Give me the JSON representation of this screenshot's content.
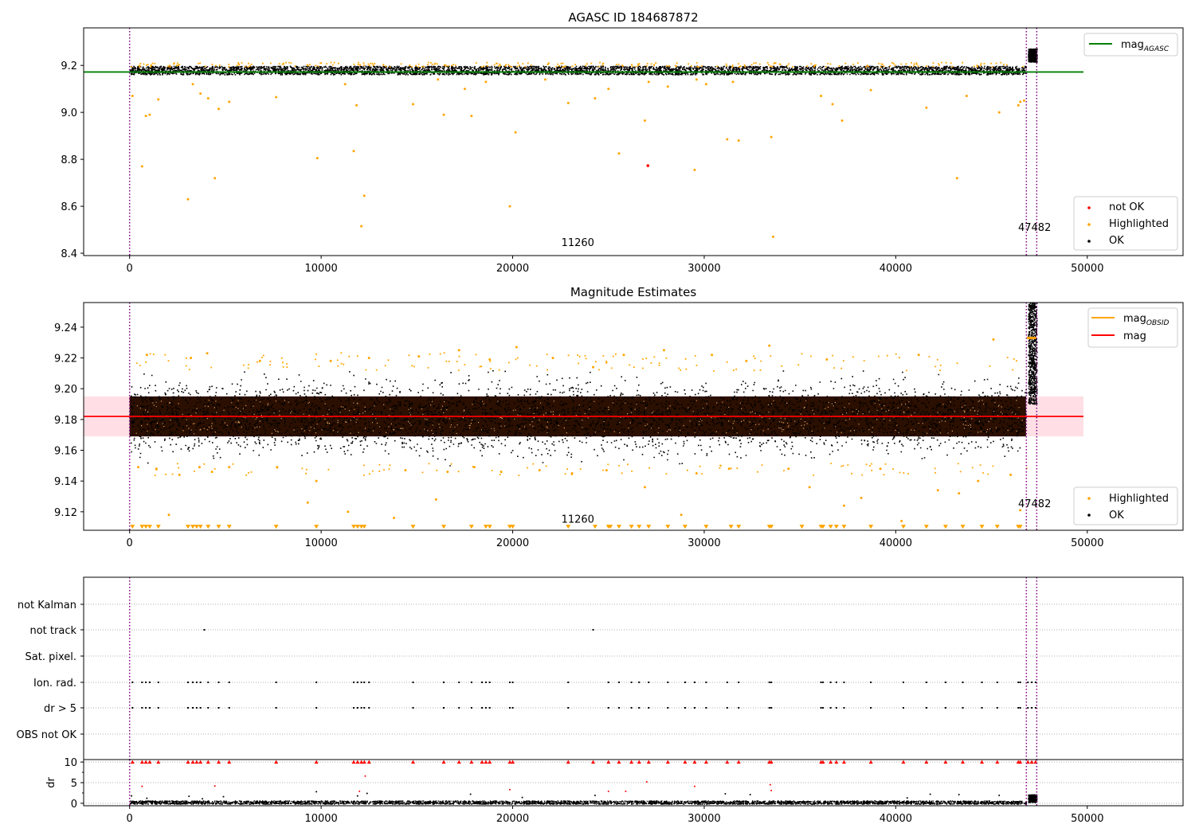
{
  "figure": {
    "title": "AGASC ID 184687872"
  },
  "chart_data": [
    {
      "type": "scatter",
      "title": "AGASC ID 184687872",
      "xlabel": "",
      "ylabel": "",
      "xlim": [
        -2400,
        55000
      ],
      "ylim": [
        8.39,
        9.36
      ],
      "xticks": [
        0,
        10000,
        20000,
        30000,
        40000,
        50000
      ],
      "xtick_labels": [
        "0",
        "10000",
        "20000",
        "30000",
        "40000",
        "50000"
      ],
      "yticks": [
        8.4,
        8.6,
        8.8,
        9.0,
        9.2
      ],
      "ytick_labels": [
        "8.4",
        "8.6",
        "8.8",
        "9.0",
        "9.2"
      ],
      "grid": false,
      "vlines": [
        0,
        46820,
        47360
      ],
      "vline_color": "#800080",
      "annotations": [
        {
          "text": "11260",
          "x": 23400,
          "y": 8.43
        },
        {
          "text": "47482",
          "x": 47250,
          "y": 8.495
        }
      ],
      "line": {
        "name": "mag_AGASC",
        "x": [
          -2400,
          49800
        ],
        "y": [
          9.172,
          9.172
        ],
        "color": "#008000"
      },
      "ok_band": {
        "x": [
          0,
          46800
        ],
        "center": 9.181,
        "spread": 0.018,
        "color": "#000000"
      },
      "ok_late": {
        "x": [
          46900,
          47350
        ],
        "center": 9.245,
        "spread": 0.028,
        "color": "#000000"
      },
      "highlighted": {
        "color": "#FFA500",
        "x": [
          150,
          650,
          850,
          1050,
          1500,
          3050,
          3300,
          3700,
          4100,
          4450,
          4650,
          5200,
          7650,
          9800,
          11250,
          11700,
          11850,
          12100,
          12250,
          14800,
          16100,
          16400,
          17500,
          17850,
          18600,
          19850,
          20150,
          21700,
          22900,
          24300,
          25000,
          25550,
          26900,
          27100,
          28100,
          29500,
          29600,
          30100,
          31200,
          31500,
          31800,
          33500,
          33600,
          36100,
          36700,
          37200,
          38700,
          41600,
          43200,
          43700,
          45400,
          46400,
          46500,
          46700
        ],
        "y": [
          9.07,
          8.77,
          8.985,
          8.99,
          9.055,
          8.63,
          9.12,
          9.08,
          9.06,
          8.72,
          9.015,
          9.045,
          9.065,
          8.805,
          9.12,
          8.835,
          9.03,
          8.515,
          8.645,
          9.035,
          9.14,
          8.99,
          9.1,
          8.985,
          9.13,
          8.6,
          8.915,
          9.14,
          9.04,
          9.06,
          9.1,
          8.825,
          8.965,
          9.13,
          9.11,
          8.755,
          9.14,
          9.12,
          8.885,
          9.13,
          8.88,
          8.895,
          8.47,
          9.07,
          9.035,
          8.965,
          9.095,
          9.02,
          8.72,
          9.07,
          9.0,
          9.03,
          9.045,
          9.05
        ]
      },
      "not_ok": {
        "color": "#FF0000",
        "x": [
          27060
        ],
        "y": [
          8.773
        ]
      },
      "legends": [
        {
          "placement": "upper right",
          "entries": [
            {
              "label": "mag",
              "sub": "AGASC",
              "color": "#008000",
              "kind": "line"
            }
          ]
        },
        {
          "placement": "lower right",
          "entries": [
            {
              "label": "not OK",
              "color": "#FF0000",
              "kind": "dot"
            },
            {
              "label": "Highlighted",
              "color": "#FFA500",
              "kind": "dot"
            },
            {
              "label": "OK",
              "color": "#000000",
              "kind": "dot"
            }
          ]
        }
      ]
    },
    {
      "type": "scatter",
      "title": "Magnitude Estimates",
      "xlabel": "",
      "ylabel": "",
      "xlim": [
        -2400,
        55000
      ],
      "ylim": [
        9.108,
        9.256
      ],
      "xticks": [
        0,
        10000,
        20000,
        30000,
        40000,
        50000
      ],
      "xtick_labels": [
        "0",
        "10000",
        "20000",
        "30000",
        "40000",
        "50000"
      ],
      "yticks": [
        9.12,
        9.14,
        9.16,
        9.18,
        9.2,
        9.22,
        9.24
      ],
      "ytick_labels": [
        "9.12",
        "9.14",
        "9.16",
        "9.18",
        "9.20",
        "9.22",
        "9.24"
      ],
      "grid": false,
      "vlines": [
        0,
        46820,
        47360
      ],
      "vline_color": "#800080",
      "annotations": [
        {
          "text": "11260",
          "x": 23400,
          "y": 9.113
        },
        {
          "text": "47482",
          "x": 47250,
          "y": 9.123
        }
      ],
      "band": {
        "x": [
          -2400,
          49800
        ],
        "y": [
          9.169,
          9.195
        ],
        "color": "#FFC0CB"
      },
      "mag_line": {
        "name": "mag",
        "x": [
          -2400,
          49800
        ],
        "y": [
          9.182,
          9.182
        ],
        "color": "#FF0000"
      },
      "mag_obsid": {
        "name": "mag_OBSID",
        "x": [
          46850,
          47330
        ],
        "y": [
          9.233,
          9.233
        ],
        "color": "#FFA500"
      },
      "dense_band": {
        "x": [
          0,
          46800
        ],
        "y": [
          9.169,
          9.195
        ],
        "color": "#2B0F00"
      },
      "ok_spread": {
        "x": [
          0,
          46800
        ],
        "lo": 9.15,
        "hi": 9.212
      },
      "ok_late": {
        "x": [
          46900,
          47350
        ],
        "lo": 9.19,
        "hi": 9.256
      },
      "highlighted": {
        "color": "#FFA500",
        "x": [
          450,
          900,
          1400,
          2050,
          2600,
          3200,
          3650,
          4050,
          4300,
          5200,
          6800,
          7700,
          9300,
          9750,
          10500,
          11400,
          12500,
          13800,
          14400,
          15100,
          16000,
          16600,
          17200,
          18000,
          18800,
          19400,
          20200,
          21400,
          22100,
          23100,
          24200,
          24900,
          25800,
          26900,
          27900,
          28800,
          29600,
          30400,
          31300,
          32200,
          33400,
          34400,
          35500,
          36400,
          37300,
          38200,
          39200,
          40300,
          41200,
          42200,
          43300,
          44300,
          45100,
          46000,
          46500
        ],
        "y": [
          9.149,
          9.222,
          9.148,
          9.118,
          9.144,
          9.22,
          9.149,
          9.223,
          9.146,
          9.149,
          9.218,
          9.149,
          9.126,
          9.14,
          9.218,
          9.12,
          9.22,
          9.116,
          9.147,
          9.221,
          9.128,
          9.146,
          9.225,
          9.149,
          9.219,
          9.146,
          9.227,
          9.147,
          9.22,
          9.145,
          9.214,
          9.147,
          9.222,
          9.136,
          9.225,
          9.118,
          9.145,
          9.222,
          9.148,
          9.218,
          9.228,
          9.148,
          9.136,
          9.219,
          9.124,
          9.129,
          9.148,
          9.114,
          9.222,
          9.134,
          9.132,
          9.14,
          9.232,
          9.144,
          9.121
        ]
      },
      "censored": {
        "color": "#FFA500",
        "y": 9.11,
        "x": [
          150,
          650,
          850,
          1050,
          1500,
          3050,
          3300,
          3500,
          3700,
          4100,
          4650,
          5200,
          7650,
          9750,
          11700,
          11900,
          12100,
          12250,
          14800,
          16400,
          17850,
          18600,
          18800,
          19850,
          20000,
          22900,
          24300,
          25000,
          25100,
          25550,
          26200,
          26600,
          27100,
          28100,
          29000,
          30100,
          31400,
          31800,
          33400,
          33500,
          35100,
          36100,
          36200,
          36600,
          36900,
          37300,
          38700,
          40400,
          41600,
          42600,
          43500,
          44500,
          45300,
          46400,
          46500
        ]
      },
      "legends": [
        {
          "placement": "upper right",
          "entries": [
            {
              "label": "mag",
              "sub": "OBSID",
              "color": "#FFA500",
              "kind": "line"
            },
            {
              "label": "mag",
              "sub": "",
              "color": "#FF0000",
              "kind": "line"
            }
          ]
        },
        {
          "placement": "lower right",
          "entries": [
            {
              "label": "Highlighted",
              "color": "#FFA500",
              "kind": "dot"
            },
            {
              "label": "OK",
              "color": "#000000",
              "kind": "dot"
            }
          ]
        }
      ]
    },
    {
      "type": "scatter",
      "title": "",
      "xlabel": "",
      "ylabel": "",
      "xlim": [
        -2400,
        55000
      ],
      "categories": [
        "not Kalman",
        "not track",
        "Sat. pixel.",
        "Ion. rad.",
        "dr > 5",
        "OBS not OK"
      ],
      "grid": true,
      "vlines": [
        0,
        46820,
        47360
      ],
      "vline_color": "#800080",
      "flags": {
        "not Kalman": [],
        "not track": [
          3900,
          24200
        ],
        "Sat. pixel.": [],
        "Ion. rad.": [
          150,
          650,
          850,
          1050,
          1500,
          3050,
          3300,
          3500,
          3700,
          4100,
          4650,
          5200,
          7650,
          9750,
          11700,
          11900,
          12100,
          12250,
          12500,
          14800,
          16400,
          17200,
          17850,
          18400,
          18600,
          18800,
          19850,
          20000,
          22900,
          25000,
          25550,
          26200,
          26600,
          27100,
          28100,
          29000,
          29500,
          30100,
          31200,
          31800,
          33400,
          33500,
          36100,
          36200,
          36600,
          36900,
          37300,
          38700,
          40400,
          41600,
          42600,
          43500,
          44500,
          45300,
          46400,
          46500,
          46900,
          47100,
          47300
        ],
        "dr > 5": [
          150,
          650,
          850,
          1050,
          1500,
          3050,
          3300,
          3500,
          3700,
          4100,
          4650,
          5200,
          7650,
          9750,
          11700,
          11900,
          12100,
          12250,
          12500,
          14800,
          16400,
          17200,
          17850,
          18400,
          18600,
          18800,
          19850,
          20000,
          22900,
          25000,
          25550,
          26200,
          26600,
          27100,
          28100,
          29000,
          29500,
          30100,
          31200,
          31800,
          33400,
          33500,
          36100,
          36200,
          36600,
          36900,
          37300,
          38700,
          40400,
          41600,
          42600,
          43500,
          44500,
          45300,
          46400,
          46500,
          46900,
          47100,
          47300
        ],
        "OBS not OK": []
      }
    },
    {
      "type": "scatter",
      "title": "",
      "xlabel": "",
      "ylabel": "dr",
      "xlim": [
        -2400,
        55000
      ],
      "ylim": [
        -0.6,
        10.6
      ],
      "yticks": [
        0,
        5,
        10
      ],
      "ytick_labels": [
        "0",
        "5",
        "10"
      ],
      "xticks": [
        0,
        10000,
        20000,
        30000,
        40000,
        50000
      ],
      "xtick_labels": [
        "0",
        "10000",
        "20000",
        "30000",
        "40000",
        "50000"
      ],
      "grid": true,
      "vlines": [
        0,
        46820,
        47360
      ],
      "vline_color": "#800080",
      "clipped": {
        "color": "#FF0000",
        "y": 10,
        "x": [
          150,
          650,
          850,
          1050,
          1500,
          3050,
          3300,
          3500,
          3700,
          4100,
          4650,
          5200,
          7650,
          9750,
          11700,
          11900,
          12100,
          12250,
          12500,
          14800,
          16400,
          17200,
          17850,
          18400,
          18600,
          18800,
          19850,
          20000,
          22900,
          24200,
          25000,
          25550,
          26200,
          26600,
          27100,
          28100,
          29000,
          29500,
          30100,
          31200,
          31800,
          33400,
          33500,
          36100,
          36200,
          36600,
          36900,
          37300,
          38700,
          40400,
          41600,
          42600,
          43500,
          44500,
          45300,
          46400,
          46500,
          46900,
          47100,
          47300
        ]
      },
      "red_points": {
        "color": "#FF0000",
        "x": [
          650,
          4450,
          12000,
          12300,
          19850,
          25000,
          25900,
          27000,
          29500,
          33450,
          33500
        ],
        "y": [
          4.1,
          4.2,
          2.9,
          6.6,
          3.3,
          2.9,
          2.9,
          5.2,
          4.1,
          4.5,
          3.1
        ]
      },
      "black_points": {
        "color": "#000000",
        "x": [
          100,
          900,
          3100,
          3800,
          4900,
          9750,
          11900,
          12400,
          17800,
          20500,
          24300,
          31100,
          32400,
          40600,
          41800,
          43300,
          45400
        ],
        "y": [
          1.8,
          1.2,
          1.7,
          1.1,
          1.6,
          2.8,
          1.8,
          2.4,
          2.2,
          1.4,
          1.9,
          2.3,
          2.1,
          1.3,
          2.2,
          2.1,
          1.9
        ]
      },
      "ok_band": {
        "x": [
          0,
          46800
        ],
        "lo": -0.1,
        "hi": 0.7
      },
      "ok_late": {
        "x": [
          46900,
          47350
        ],
        "lo": 0.3,
        "hi": 2.2
      }
    }
  ]
}
